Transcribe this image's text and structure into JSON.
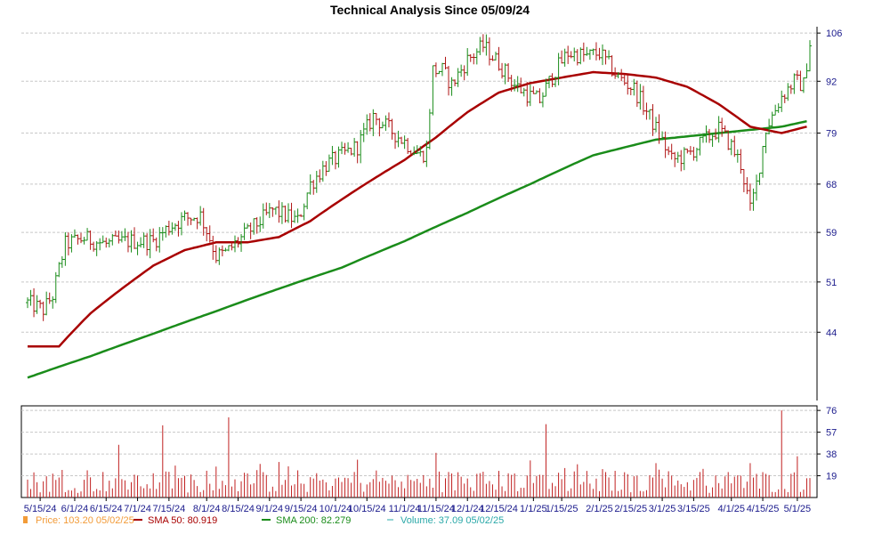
{
  "chart_data": {
    "type": "line",
    "title": "Technical Analysis Since 05/09/24",
    "price_axis": {
      "ticks": [
        44,
        51,
        59,
        68,
        79,
        92,
        106
      ],
      "scale": "log",
      "range": [
        36,
        108
      ],
      "grid": true,
      "side": "right"
    },
    "volume_axis": {
      "ticks": [
        19,
        38,
        57,
        76
      ],
      "range": [
        0,
        80
      ],
      "side": "right"
    },
    "x_tick_labels": [
      "5/15/24",
      "6/1/24",
      "6/15/24",
      "7/1/24",
      "7/15/24",
      "8/1/24",
      "8/15/24",
      "9/1/24",
      "9/15/24",
      "10/1/24",
      "10/15/24",
      "11/1/24",
      "11/15/24",
      "12/1/24",
      "12/15/24",
      "1/1/25",
      "1/15/25",
      "2/1/25",
      "2/15/25",
      "3/1/25",
      "3/15/25",
      "4/1/25",
      "4/15/25",
      "5/1/25"
    ],
    "x_tick_sessions": [
      4,
      15,
      25,
      35,
      45,
      57,
      67,
      77,
      87,
      98,
      108,
      120,
      130,
      140,
      150,
      161,
      170,
      182,
      192,
      202,
      212,
      224,
      234,
      245
    ],
    "sessions": 250,
    "price_bars_ohlc_note": "daily OHLC bars, green = close up, red = close down",
    "price_path": [
      [
        0,
        48
      ],
      [
        5,
        47
      ],
      [
        8,
        49
      ],
      [
        12,
        57
      ],
      [
        18,
        58
      ],
      [
        25,
        57
      ],
      [
        32,
        57.5
      ],
      [
        40,
        57.5
      ],
      [
        45,
        60
      ],
      [
        50,
        61.5
      ],
      [
        55,
        62
      ],
      [
        58,
        58
      ],
      [
        60,
        55
      ],
      [
        63,
        55.5
      ],
      [
        68,
        58
      ],
      [
        72,
        60
      ],
      [
        78,
        63
      ],
      [
        82,
        62
      ],
      [
        86,
        61
      ],
      [
        90,
        68
      ],
      [
        95,
        72
      ],
      [
        100,
        74
      ],
      [
        105,
        76
      ],
      [
        110,
        83
      ],
      [
        115,
        80
      ],
      [
        120,
        77
      ],
      [
        125,
        74
      ],
      [
        127,
        75
      ],
      [
        129,
        95
      ],
      [
        132,
        95
      ],
      [
        135,
        91
      ],
      [
        140,
        98
      ],
      [
        145,
        102
      ],
      [
        150,
        97
      ],
      [
        155,
        91
      ],
      [
        160,
        88
      ],
      [
        163,
        87
      ],
      [
        168,
        95
      ],
      [
        172,
        100
      ],
      [
        178,
        99
      ],
      [
        182,
        100
      ],
      [
        188,
        93
      ],
      [
        193,
        90
      ],
      [
        200,
        80
      ],
      [
        205,
        73
      ],
      [
        210,
        74
      ],
      [
        215,
        77
      ],
      [
        220,
        80
      ],
      [
        224,
        76
      ],
      [
        227,
        72
      ],
      [
        230,
        63
      ],
      [
        232,
        68
      ],
      [
        235,
        80
      ],
      [
        240,
        88
      ],
      [
        244,
        92
      ],
      [
        247,
        91
      ],
      [
        249,
        103
      ]
    ],
    "series": [
      {
        "name": "Price",
        "last_value": 103.2,
        "date": "05/02/25",
        "color": "#f29b38"
      },
      {
        "name": "SMA 50",
        "last_value": 80.919,
        "color": "#a80000",
        "points": [
          [
            0,
            42.2
          ],
          [
            10,
            42.2
          ],
          [
            20,
            46.5
          ],
          [
            30,
            50
          ],
          [
            40,
            53.5
          ],
          [
            50,
            56
          ],
          [
            60,
            57.3
          ],
          [
            70,
            57.3
          ],
          [
            80,
            58.2
          ],
          [
            90,
            61
          ],
          [
            100,
            65
          ],
          [
            110,
            69
          ],
          [
            120,
            73
          ],
          [
            130,
            78
          ],
          [
            140,
            84
          ],
          [
            150,
            89
          ],
          [
            160,
            91.5
          ],
          [
            170,
            93
          ],
          [
            180,
            94.5
          ],
          [
            190,
            94
          ],
          [
            200,
            93
          ],
          [
            210,
            90.5
          ],
          [
            220,
            86
          ],
          [
            230,
            80.5
          ],
          [
            240,
            79
          ],
          [
            248,
            80.5
          ]
        ]
      },
      {
        "name": "SMA 200",
        "last_value": 82.279,
        "color": "#1a8c1a",
        "points": [
          [
            0,
            38.5
          ],
          [
            20,
            41
          ],
          [
            40,
            43.8
          ],
          [
            60,
            46.8
          ],
          [
            80,
            50
          ],
          [
            100,
            53.2
          ],
          [
            120,
            57.5
          ],
          [
            140,
            62.5
          ],
          [
            160,
            68
          ],
          [
            180,
            74
          ],
          [
            200,
            77.5
          ],
          [
            220,
            79
          ],
          [
            240,
            80.5
          ],
          [
            248,
            81.8
          ]
        ]
      },
      {
        "name": "Volume",
        "last_value": 37.09,
        "date": "05/02/25",
        "color": "#2aa8a8"
      }
    ],
    "volume_peaks": [
      [
        29,
        46
      ],
      [
        43,
        63
      ],
      [
        60,
        27
      ],
      [
        64,
        70
      ],
      [
        80,
        31
      ],
      [
        105,
        33
      ],
      [
        130,
        39
      ],
      [
        135,
        21
      ],
      [
        155,
        21
      ],
      [
        165,
        64
      ],
      [
        175,
        29
      ],
      [
        200,
        30
      ],
      [
        215,
        25
      ],
      [
        230,
        30
      ],
      [
        240,
        76
      ],
      [
        245,
        36
      ]
    ]
  },
  "legend": [
    {
      "text": "Price: 103.20  05/02/25",
      "color": "#f29b38",
      "marker": "bar"
    },
    {
      "text": "SMA 50: 80.919",
      "color": "#a80000",
      "marker": "line"
    },
    {
      "text": "SMA 200: 82.279",
      "color": "#1a8c1a",
      "marker": "line"
    },
    {
      "text": "Volume: 37.09  05/02/25",
      "color": "#2aa8a8",
      "marker": "dash"
    }
  ],
  "colors": {
    "up": "#1a8c1a",
    "down": "#b01515",
    "grid": "#c8c8c8",
    "axis": "#000000",
    "tick_text": "#1a1a8c",
    "volume_bar": "#c02020"
  }
}
